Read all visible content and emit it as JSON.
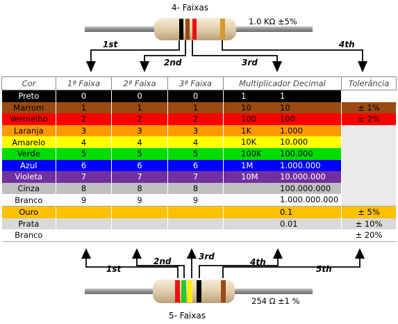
{
  "top_resistor": {
    "title": "4- Faixas",
    "spec": "1.0 KΩ ±5%",
    "arrows": [
      "1st",
      "2nd",
      "3rd",
      "4th"
    ]
  },
  "bottom_resistor": {
    "title": "5- Faixas",
    "spec": "254 Ω ±1 %",
    "arrows": [
      "1st",
      "2nd",
      "3rd",
      "4th",
      "5th"
    ]
  },
  "table": {
    "headers": [
      "Cor",
      "1ª Faixa",
      "2ª Faixa",
      "3ª Faixa",
      "Multiplicador Decimal",
      "Tolerância"
    ],
    "rows": [
      {
        "name": "Preto",
        "d1": "0",
        "d2": "0",
        "d3": "0",
        "mult": "1",
        "mult_value": "1",
        "tol": "",
        "bg": "#000000",
        "fg": "#ffffff"
      },
      {
        "name": "Marrom",
        "d1": "1",
        "d2": "1",
        "d3": "1",
        "mult": "10",
        "mult_value": "10",
        "tol": "± 1%",
        "bg": "#9b4a12",
        "fg": "#000000"
      },
      {
        "name": "Vermelho",
        "d1": "2",
        "d2": "2",
        "d3": "2",
        "mult": "100",
        "mult_value": "100",
        "tol": "± 2%",
        "bg": "#ff0000",
        "fg": "#000000"
      },
      {
        "name": "Laranja",
        "d1": "3",
        "d2": "3",
        "d3": "3",
        "mult": "1K",
        "mult_value": "1.000",
        "tol": "",
        "bg": "#ff9900",
        "fg": "#000000"
      },
      {
        "name": "Amarelo",
        "d1": "4",
        "d2": "4",
        "d3": "4",
        "mult": "10K",
        "mult_value": "10.000",
        "tol": "",
        "bg": "#ffff00",
        "fg": "#000000"
      },
      {
        "name": "Verde",
        "d1": "5",
        "d2": "5",
        "d3": "5",
        "mult": "100K",
        "mult_value": "100.000",
        "tol": "",
        "bg": "#00dd00",
        "fg": "#000000"
      },
      {
        "name": "Azul",
        "d1": "6",
        "d2": "6",
        "d3": "6",
        "mult": "1M",
        "mult_value": "1.000.000",
        "tol": "",
        "bg": "#0000ff",
        "fg": "#ffffff"
      },
      {
        "name": "Violeta",
        "d1": "7",
        "d2": "7",
        "d3": "7",
        "mult": "10M",
        "mult_value": "10.000.000",
        "tol": "",
        "bg": "#7030a0",
        "fg": "#ffffff"
      },
      {
        "name": "Cinza",
        "d1": "8",
        "d2": "8",
        "d3": "8",
        "mult": "",
        "mult_value": "100.000.000",
        "tol": "",
        "bg": "#c0c0c0",
        "fg": "#000000"
      },
      {
        "name": "Branco",
        "d1": "9",
        "d2": "9",
        "d3": "9",
        "mult": "",
        "mult_value": "1.000.000.000",
        "tol": "",
        "bg": "#ffffff",
        "fg": "#000000"
      },
      {
        "name": "Ouro",
        "d1": "",
        "d2": "",
        "d3": "",
        "mult": "",
        "mult_value": "0.1",
        "tol": "± 5%",
        "bg": "#ffc000",
        "fg": "#000000"
      },
      {
        "name": "Prata",
        "d1": "",
        "d2": "",
        "d3": "",
        "mult": "",
        "mult_value": "0.01",
        "tol": "± 10%",
        "bg": "#d9d9d9",
        "fg": "#000000"
      },
      {
        "name": "Branco",
        "d1": "",
        "d2": "",
        "d3": "",
        "mult": "",
        "mult_value": "",
        "tol": "± 20%",
        "bg": "#ffffff",
        "fg": "#000000"
      }
    ]
  },
  "colors": {
    "lead": "#9a9a9a",
    "body": "#e8d8b8",
    "grid_grey": "#eaeaea"
  }
}
